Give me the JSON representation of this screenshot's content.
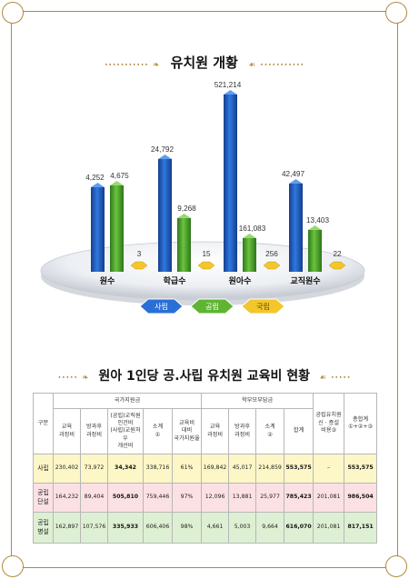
{
  "titles": {
    "chart_title": "유치원 개황",
    "table_title": "원아 1인당 공.사립 유치원 교육비 현황"
  },
  "colors": {
    "sarip": "#1e5bbf",
    "gongrip": "#4ea32c",
    "gukrip": "#f2c62c",
    "border": "#b08a3e"
  },
  "chart_data": {
    "type": "bar",
    "categories": [
      "원수",
      "학급수",
      "원아수",
      "교직원수"
    ],
    "series": [
      {
        "name": "사립",
        "values": [
          4252,
          24792,
          521214,
          42497
        ],
        "labels": [
          "4,252",
          "24,792",
          "521,214",
          "42,497"
        ]
      },
      {
        "name": "공립",
        "values": [
          4675,
          9268,
          161083,
          13403
        ],
        "labels": [
          "4,675",
          "9,268",
          "161,083",
          "13,403"
        ]
      },
      {
        "name": "국립",
        "values": [
          3,
          15,
          256,
          22
        ],
        "labels": [
          "3",
          "15",
          "256",
          "22"
        ]
      }
    ],
    "legend": [
      "사립",
      "공립",
      "국립"
    ]
  },
  "table": {
    "group_national": "국가지원금",
    "group_parent": "학부모부담금",
    "col_gubun": "구분",
    "subheaders": [
      [
        "교육",
        "과정비"
      ],
      [
        "방과후",
        "과정비"
      ],
      [
        "(공립)교직원",
        "인건비",
        "(사립)교원처우",
        "개선비"
      ],
      [
        "소계",
        "①"
      ],
      [
        "교육비",
        "대비",
        "국가지원율"
      ],
      [
        "교육",
        "과정비"
      ],
      [
        "방과후",
        "과정비"
      ],
      [
        "소계",
        "②"
      ],
      [
        "합계"
      ],
      [
        "공립유치원",
        "신 · 증설",
        "비용③"
      ],
      [
        "총합계",
        "①+②+③"
      ]
    ],
    "rows": [
      {
        "label": [
          "사립"
        ],
        "cells": [
          "230,402",
          "73,972",
          "34,342",
          "338,716",
          "61%",
          "169,842",
          "45,017",
          "214,859",
          "553,575",
          "–",
          "553,575"
        ]
      },
      {
        "label": [
          "공립",
          "단설"
        ],
        "cells": [
          "164,232",
          "89,404",
          "505,810",
          "759,446",
          "97%",
          "12,096",
          "13,881",
          "25,977",
          "785,423",
          "201,081",
          "986,504"
        ]
      },
      {
        "label": [
          "공립",
          "병설"
        ],
        "cells": [
          "162,897",
          "107,576",
          "335,933",
          "606,406",
          "98%",
          "4,661",
          "5,003",
          "9,664",
          "616,070",
          "201,081",
          "817,151"
        ]
      }
    ]
  }
}
